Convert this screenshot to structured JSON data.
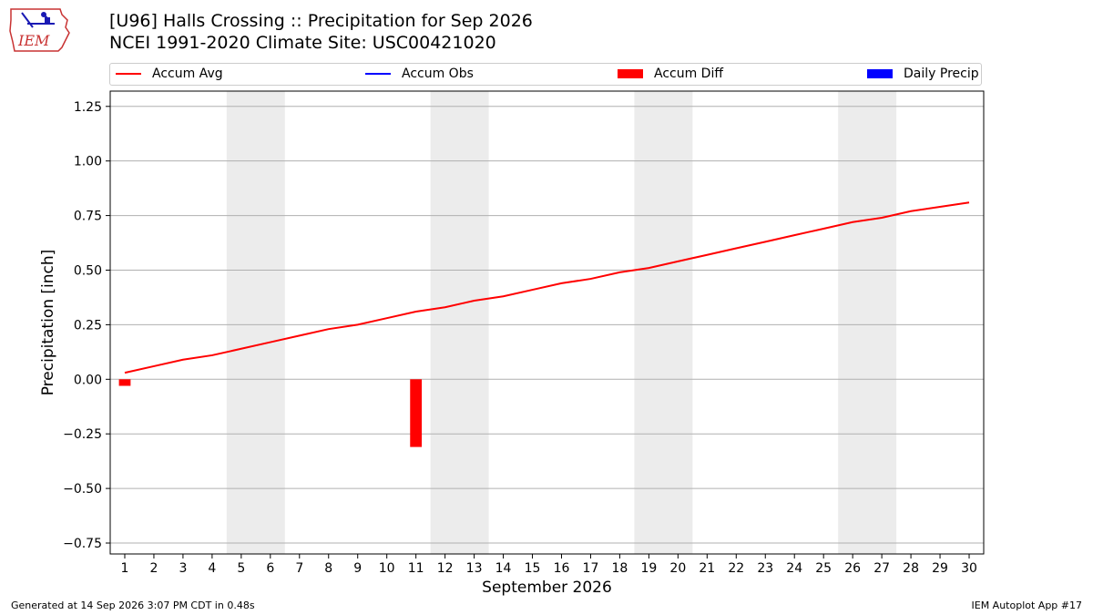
{
  "header": {
    "title_line1": "[U96] Halls Crossing :: Precipitation for Sep 2026",
    "title_line2": "NCEI 1991-2020 Climate Site: USC00421020",
    "logo_text": "IEM"
  },
  "legend": {
    "items": [
      {
        "label": "Accum Avg",
        "kind": "line",
        "color": "#ff0000"
      },
      {
        "label": "Accum Obs",
        "kind": "line",
        "color": "#0000ff"
      },
      {
        "label": "Accum Diff",
        "kind": "patch",
        "color": "#ff0000"
      },
      {
        "label": "Daily Precip",
        "kind": "patch",
        "color": "#0000ff"
      }
    ]
  },
  "footer": {
    "left": "Generated at 14 Sep 2026 3:07 PM CDT in 0.48s",
    "right": "IEM Autoplot App #17"
  },
  "chart_data": {
    "type": "line",
    "title": "[U96] Halls Crossing :: Precipitation for Sep 2026",
    "subtitle": "NCEI 1991-2020 Climate Site: USC00421020",
    "xlabel": "September 2026",
    "ylabel": "Precipitation [inch]",
    "xlim": [
      0.5,
      30.5
    ],
    "ylim": [
      -0.8,
      1.32
    ],
    "x_ticks": [
      1,
      2,
      3,
      4,
      5,
      6,
      7,
      8,
      9,
      10,
      11,
      12,
      13,
      14,
      15,
      16,
      17,
      18,
      19,
      20,
      21,
      22,
      23,
      24,
      25,
      26,
      27,
      28,
      29,
      30
    ],
    "y_ticks": [
      -0.75,
      -0.5,
      -0.25,
      0.0,
      0.25,
      0.5,
      0.75,
      1.0,
      1.25
    ],
    "y_tick_labels": [
      "−0.75",
      "−0.50",
      "−0.25",
      "0.00",
      "0.25",
      "0.50",
      "0.75",
      "1.00",
      "1.25"
    ],
    "grid": "horizontal",
    "legend_position": "top",
    "weekend_shading": [
      [
        4.5,
        6.5
      ],
      [
        11.5,
        13.5
      ],
      [
        18.5,
        20.5
      ],
      [
        25.5,
        27.5
      ]
    ],
    "weekend_color": "#ececec",
    "series": [
      {
        "name": "Accum Avg",
        "type": "line",
        "color": "#ff0000",
        "x": [
          1,
          2,
          3,
          4,
          5,
          6,
          7,
          8,
          9,
          10,
          11,
          12,
          13,
          14,
          15,
          16,
          17,
          18,
          19,
          20,
          21,
          22,
          23,
          24,
          25,
          26,
          27,
          28,
          29,
          30
        ],
        "values": [
          0.03,
          0.06,
          0.09,
          0.11,
          0.14,
          0.17,
          0.2,
          0.23,
          0.25,
          0.28,
          0.31,
          0.33,
          0.36,
          0.38,
          0.41,
          0.44,
          0.46,
          0.49,
          0.51,
          0.54,
          0.57,
          0.6,
          0.63,
          0.66,
          0.69,
          0.72,
          0.74,
          0.77,
          0.79,
          0.81
        ]
      },
      {
        "name": "Accum Diff",
        "type": "bar",
        "color": "#ff0000",
        "x": [
          1,
          11
        ],
        "values": [
          -0.03,
          -0.31
        ]
      }
    ]
  }
}
